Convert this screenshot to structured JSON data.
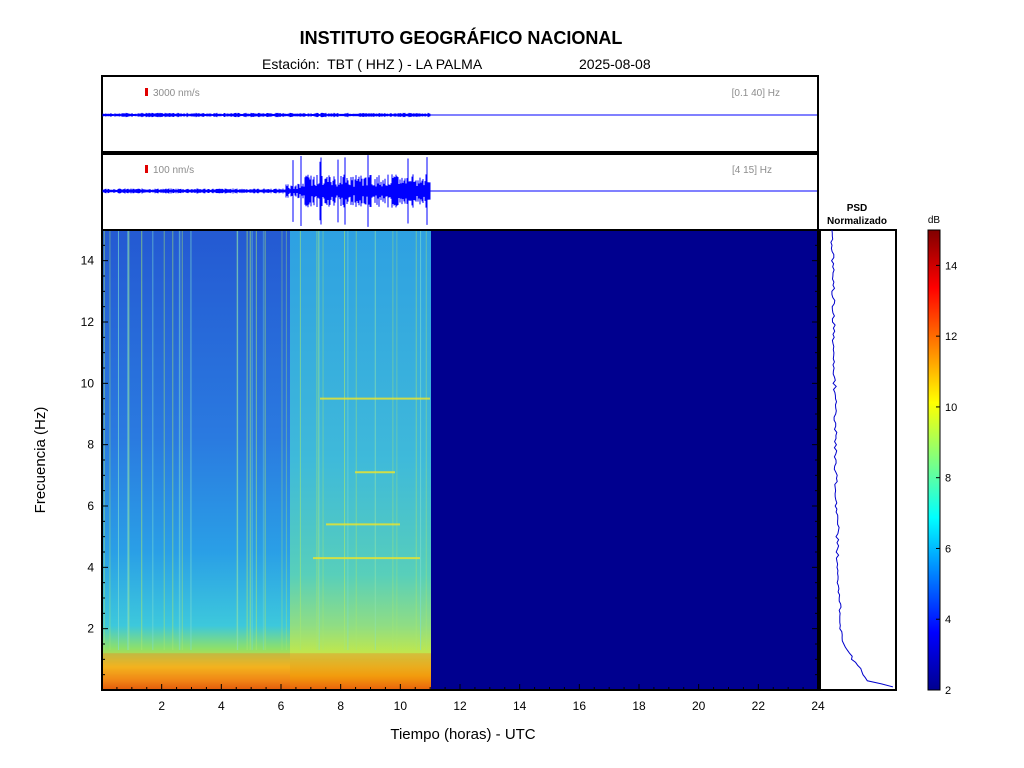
{
  "header": {
    "title": "INSTITUTO GEOGRÁFICO NACIONAL",
    "station_line": "Estación:  TBT ( HHZ ) - LA PALMA",
    "date": "2025-08-08"
  },
  "traces": [
    {
      "scale_label": "3000 nm/s",
      "band_label": "[0.1 40] Hz",
      "scale_color": "#e00000"
    },
    {
      "scale_label": "100 nm/s",
      "band_label": "[4 15] Hz",
      "scale_color": "#e00000"
    }
  ],
  "psd": {
    "title_line1": "PSD",
    "title_line2": "Normalizado"
  },
  "colorbar": {
    "unit": "dB",
    "min": 2,
    "max": 15,
    "ticks": [
      2,
      4,
      6,
      8,
      10,
      12,
      14
    ]
  },
  "colors": {
    "trace": "#0000ff",
    "empty_spectrogram": "#00008f"
  },
  "chart_data": {
    "type": "heatmap",
    "title": "INSTITUTO GEOGRÁFICO NACIONAL",
    "xlabel": "Tiempo (horas) - UTC",
    "ylabel": "Frecuencia  (Hz)",
    "xlim": [
      0,
      24
    ],
    "ylim": [
      0,
      15
    ],
    "x_ticks": [
      2,
      4,
      6,
      8,
      10,
      12,
      14,
      16,
      18,
      20,
      22,
      24
    ],
    "y_ticks": [
      2,
      4,
      6,
      8,
      10,
      12,
      14
    ],
    "data_end_hour": 11,
    "colorbar_range_db": [
      2,
      15
    ],
    "psd_profile": {
      "freq_hz": [
        0.1,
        0.3,
        0.6,
        1,
        1.5,
        2,
        3,
        4,
        5,
        5.4,
        6,
        7,
        8,
        9,
        9.5,
        10,
        11,
        12,
        13,
        14,
        15
      ],
      "normalized": [
        0.98,
        0.6,
        0.5,
        0.35,
        0.22,
        0.17,
        0.14,
        0.12,
        0.11,
        0.13,
        0.1,
        0.09,
        0.09,
        0.08,
        0.09,
        0.07,
        0.06,
        0.06,
        0.05,
        0.04,
        0.03
      ]
    }
  }
}
